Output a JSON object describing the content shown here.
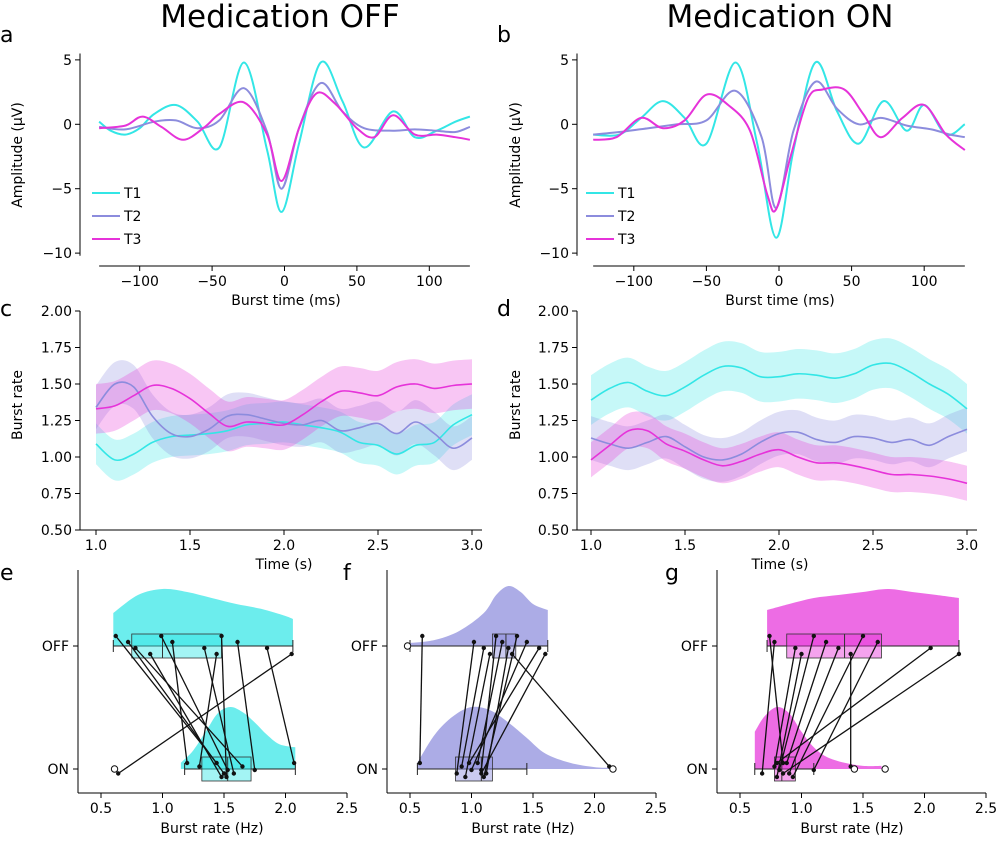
{
  "colors": {
    "T1": "#33e6e6",
    "T2": "#8c8cdd",
    "T3": "#e633d9",
    "axis": "#000000"
  },
  "columns": {
    "left_title": "Medication OFF",
    "right_title": "Medication ON"
  },
  "legend_labels": [
    "T1",
    "T2",
    "T3"
  ],
  "chart_data": [
    {
      "id": "a",
      "type": "line",
      "panel_label": "a",
      "xlabel": "Burst time (ms)",
      "ylabel": "Amplitude (μV)",
      "xlim": [
        -135,
        135
      ],
      "ylim": [
        -11,
        6
      ],
      "xticks": [
        -100,
        -50,
        0,
        50,
        100
      ],
      "xtick_labels": [
        "−100",
        "−50",
        "0",
        "50",
        "100"
      ],
      "yticks": [
        5,
        0,
        -5,
        -10
      ],
      "ytick_labels": [
        "5",
        "0",
        "−5",
        "−10"
      ],
      "series": [
        {
          "name": "T1",
          "x": [
            -128,
            -120,
            -110,
            -100,
            -90,
            -75,
            -60,
            -45,
            -28,
            -12,
            -2,
            10,
            25,
            40,
            55,
            75,
            90,
            105,
            118,
            128
          ],
          "y": [
            0.2,
            -0.5,
            -0.8,
            -0.3,
            0.8,
            1.5,
            0.2,
            -1.8,
            4.8,
            -2.0,
            -6.8,
            -1.5,
            4.8,
            1.8,
            -1.8,
            1.0,
            -1.0,
            -0.5,
            0.2,
            0.6
          ]
        },
        {
          "name": "T2",
          "x": [
            -128,
            -110,
            -90,
            -75,
            -60,
            -45,
            -28,
            -12,
            -2,
            10,
            25,
            40,
            55,
            75,
            90,
            105,
            118,
            128
          ],
          "y": [
            -0.2,
            -0.4,
            0.2,
            0.3,
            -0.3,
            0.3,
            2.8,
            -0.6,
            -5.0,
            -0.3,
            3.2,
            1.0,
            -0.3,
            -0.5,
            -0.4,
            -0.5,
            -0.6,
            -0.2
          ]
        },
        {
          "name": "T3",
          "x": [
            -128,
            -110,
            -98,
            -85,
            -70,
            -55,
            -45,
            -28,
            -12,
            -2,
            10,
            22,
            35,
            50,
            62,
            75,
            90,
            105,
            118,
            128
          ],
          "y": [
            -0.3,
            -0.1,
            0.6,
            -0.2,
            -1.2,
            -0.2,
            0.8,
            1.7,
            -0.8,
            -4.4,
            -0.3,
            2.4,
            1.6,
            -0.3,
            -1.0,
            0.7,
            -0.8,
            -0.8,
            -1.0,
            -1.2
          ]
        }
      ]
    },
    {
      "id": "b",
      "type": "line",
      "panel_label": "b",
      "xlabel": "Burst time (ms)",
      "ylabel": "Amplitude (μV)",
      "xlim": [
        -135,
        135
      ],
      "ylim": [
        -11,
        6
      ],
      "xticks": [
        -100,
        -50,
        0,
        50,
        100
      ],
      "xtick_labels": [
        "−100",
        "−50",
        "0",
        "50",
        "100"
      ],
      "yticks": [
        5,
        0,
        -5,
        -10
      ],
      "ytick_labels": [
        "5",
        "0",
        "−5",
        "−10"
      ],
      "series": [
        {
          "name": "T1",
          "x": [
            -128,
            -110,
            -95,
            -80,
            -65,
            -50,
            -30,
            -15,
            -2,
            10,
            25,
            40,
            55,
            72,
            88,
            100,
            115,
            128
          ],
          "y": [
            -0.8,
            -0.8,
            0.5,
            1.8,
            0.5,
            -1.5,
            4.8,
            -1.5,
            -8.8,
            -2.0,
            4.8,
            1.0,
            -1.5,
            1.8,
            -0.5,
            1.5,
            -0.8,
            0.0
          ]
        },
        {
          "name": "T2",
          "x": [
            -128,
            -110,
            -90,
            -70,
            -50,
            -30,
            -12,
            -2,
            10,
            25,
            40,
            55,
            70,
            88,
            105,
            118,
            128
          ],
          "y": [
            -0.8,
            -0.6,
            -0.3,
            0.0,
            0.3,
            2.6,
            -1.0,
            -6.5,
            -0.5,
            3.3,
            1.2,
            0.0,
            0.5,
            -0.1,
            -0.4,
            -0.8,
            -1.0
          ]
        },
        {
          "name": "T3",
          "x": [
            -128,
            -112,
            -95,
            -80,
            -65,
            -50,
            -35,
            -20,
            -8,
            -2,
            8,
            20,
            30,
            45,
            58,
            70,
            85,
            100,
            115,
            128
          ],
          "y": [
            -1.2,
            -1.0,
            0.5,
            -0.3,
            0.3,
            2.3,
            1.5,
            -0.5,
            -5.5,
            -6.6,
            -2.5,
            2.0,
            2.7,
            2.7,
            0.8,
            -1.0,
            0.5,
            1.5,
            -0.8,
            -2.0
          ]
        }
      ]
    },
    {
      "id": "c",
      "type": "area",
      "panel_label": "c",
      "xlabel": "Time (s)",
      "ylabel": "Burst rate",
      "xlim": [
        0.93,
        3.07
      ],
      "ylim": [
        0.5,
        2.0
      ],
      "xticks": [
        1.0,
        1.5,
        2.0,
        2.5,
        3.0
      ],
      "xtick_labels": [
        "1.0",
        "1.5",
        "2.0",
        "2.5",
        "3.0"
      ],
      "yticks": [
        0.5,
        0.75,
        1.0,
        1.25,
        1.5,
        1.75,
        2.0
      ],
      "ytick_labels": [
        "0.50",
        "0.75",
        "1.00",
        "1.25",
        "1.50",
        "1.75",
        "2.00"
      ],
      "x": [
        1.0,
        1.1,
        1.2,
        1.3,
        1.4,
        1.5,
        1.6,
        1.7,
        1.8,
        1.9,
        2.0,
        2.1,
        2.2,
        2.3,
        2.4,
        2.5,
        2.6,
        2.7,
        2.8,
        2.9,
        3.0
      ],
      "series": [
        {
          "name": "T1",
          "values": [
            1.09,
            0.98,
            1.02,
            1.1,
            1.14,
            1.15,
            1.16,
            1.18,
            1.22,
            1.23,
            1.24,
            1.22,
            1.2,
            1.17,
            1.1,
            1.08,
            1.02,
            1.08,
            1.1,
            1.22,
            1.29
          ],
          "band": 0.14
        },
        {
          "name": "T2",
          "values": [
            1.34,
            1.5,
            1.48,
            1.28,
            1.16,
            1.14,
            1.19,
            1.28,
            1.29,
            1.26,
            1.23,
            1.22,
            1.25,
            1.18,
            1.2,
            1.23,
            1.16,
            1.24,
            1.16,
            1.06,
            1.13
          ],
          "band": 0.15
        },
        {
          "name": "T3",
          "values": [
            1.33,
            1.35,
            1.42,
            1.49,
            1.47,
            1.4,
            1.3,
            1.21,
            1.24,
            1.23,
            1.22,
            1.29,
            1.38,
            1.45,
            1.44,
            1.42,
            1.48,
            1.5,
            1.47,
            1.49,
            1.5
          ],
          "band": 0.17
        }
      ]
    },
    {
      "id": "d",
      "type": "area",
      "panel_label": "d",
      "xlabel": "Time (s)",
      "ylabel": "Burst rate",
      "xlim": [
        0.93,
        3.07
      ],
      "ylim": [
        0.5,
        2.0
      ],
      "xticks": [
        1.0,
        1.5,
        2.0,
        2.5,
        3.0
      ],
      "xtick_labels": [
        "1.0",
        "1.5",
        "2.0",
        "2.5",
        "3.0"
      ],
      "yticks": [
        0.5,
        0.75,
        1.0,
        1.25,
        1.5,
        1.75,
        2.0
      ],
      "ytick_labels": [
        "0.50",
        "0.75",
        "1.00",
        "1.25",
        "1.50",
        "1.75",
        "2.00"
      ],
      "x": [
        1.0,
        1.1,
        1.2,
        1.3,
        1.4,
        1.5,
        1.6,
        1.7,
        1.8,
        1.9,
        2.0,
        2.1,
        2.2,
        2.3,
        2.4,
        2.5,
        2.6,
        2.7,
        2.8,
        2.9,
        3.0
      ],
      "series": [
        {
          "name": "T1",
          "values": [
            1.39,
            1.47,
            1.51,
            1.45,
            1.42,
            1.48,
            1.56,
            1.62,
            1.61,
            1.55,
            1.55,
            1.57,
            1.56,
            1.54,
            1.57,
            1.63,
            1.64,
            1.58,
            1.5,
            1.43,
            1.33
          ],
          "band": 0.17
        },
        {
          "name": "T2",
          "values": [
            1.13,
            1.09,
            1.06,
            1.1,
            1.14,
            1.07,
            1.0,
            0.98,
            1.02,
            1.1,
            1.16,
            1.17,
            1.12,
            1.1,
            1.14,
            1.13,
            1.1,
            1.12,
            1.08,
            1.14,
            1.19
          ],
          "band": 0.15
        },
        {
          "name": "T3",
          "values": [
            0.98,
            1.08,
            1.18,
            1.18,
            1.09,
            1.04,
            0.98,
            0.94,
            0.97,
            1.02,
            1.05,
            1.0,
            0.96,
            0.96,
            0.94,
            0.91,
            0.88,
            0.88,
            0.87,
            0.85,
            0.82
          ],
          "band": 0.12
        }
      ]
    },
    {
      "id": "e",
      "type": "scatter",
      "panel_label": "e",
      "color_series": "T1",
      "xlabel": "Burst rate (Hz)",
      "categories": [
        "OFF",
        "ON"
      ],
      "xlim": [
        0.4,
        2.5
      ],
      "xticks": [
        0.5,
        1.0,
        1.5,
        2.0,
        2.5
      ],
      "xtick_labels": [
        "0.5",
        "1.0",
        "1.5",
        "2.0",
        "2.5"
      ],
      "off_values": [
        0.62,
        0.72,
        0.78,
        0.9,
        0.99,
        1.08,
        1.34,
        1.44,
        1.48,
        1.61,
        1.85,
        2.05
      ],
      "on_values": [
        1.44,
        1.5,
        1.65,
        1.48,
        1.53,
        1.2,
        1.58,
        1.3,
        1.52,
        1.75,
        2.07,
        0.64
      ],
      "outliers_on": [
        0.61
      ],
      "box_off": {
        "q1": 0.75,
        "median": 1.0,
        "q3": 1.48,
        "whisker_low": 0.6,
        "whisker_high": 2.06
      },
      "box_on": {
        "q1": 1.32,
        "median": 1.53,
        "q3": 1.72,
        "whisker_low": 1.18,
        "whisker_high": 2.08
      },
      "density_off": {
        "x": [
          0.6,
          0.8,
          1.0,
          1.2,
          1.4,
          1.6,
          1.8,
          2.0,
          2.06
        ],
        "y": [
          0.55,
          0.85,
          0.95,
          0.9,
          0.8,
          0.7,
          0.62,
          0.5,
          0.45
        ]
      },
      "density_on": {
        "x": [
          1.15,
          1.25,
          1.35,
          1.45,
          1.55,
          1.65,
          1.75,
          1.85,
          1.95,
          2.08
        ],
        "y": [
          0.1,
          0.3,
          0.6,
          0.9,
          1.0,
          0.92,
          0.75,
          0.55,
          0.4,
          0.35
        ]
      }
    },
    {
      "id": "f",
      "type": "scatter",
      "panel_label": "f",
      "color_series": "T2",
      "xlabel": "Burst rate (Hz)",
      "categories": [
        "OFF",
        "ON"
      ],
      "xlim": [
        0.4,
        2.5
      ],
      "xticks": [
        0.5,
        1.0,
        1.5,
        2.0,
        2.5
      ],
      "xtick_labels": [
        "0.5",
        "1.0",
        "1.5",
        "2.0",
        "2.5"
      ],
      "off_values": [
        0.6,
        1.02,
        1.1,
        1.15,
        1.2,
        1.25,
        1.3,
        1.33,
        1.37,
        1.45,
        1.55,
        1.6
      ],
      "on_values": [
        0.58,
        0.88,
        0.92,
        0.95,
        1.08,
        1.05,
        1.12,
        2.12,
        1.1,
        1.0,
        0.98,
        1.08
      ],
      "outliers_off": [
        0.48
      ],
      "outliers_on": [
        2.15
      ],
      "box_off": {
        "q1": 1.17,
        "median": 1.28,
        "q3": 1.36,
        "whisker_low": 0.5,
        "whisker_high": 1.62
      },
      "box_on": {
        "q1": 0.87,
        "median": 1.08,
        "q3": 1.17,
        "whisker_low": 0.56,
        "whisker_high": 1.45
      },
      "density_off": {
        "x": [
          0.5,
          0.7,
          0.9,
          1.1,
          1.2,
          1.3,
          1.4,
          1.5,
          1.62
        ],
        "y": [
          0.05,
          0.1,
          0.25,
          0.55,
          0.85,
          1.0,
          0.9,
          0.7,
          0.6
        ]
      },
      "density_on": {
        "x": [
          0.56,
          0.7,
          0.85,
          1.0,
          1.15,
          1.3,
          1.45,
          1.6,
          1.8,
          2.0,
          2.14
        ],
        "y": [
          0.1,
          0.55,
          0.85,
          1.0,
          0.95,
          0.75,
          0.5,
          0.25,
          0.1,
          0.03,
          0.02
        ]
      }
    },
    {
      "id": "g",
      "type": "scatter",
      "panel_label": "g",
      "color_series": "T3",
      "xlabel": "Burst rate (Hz)",
      "categories": [
        "OFF",
        "ON"
      ],
      "xlim": [
        0.4,
        2.5
      ],
      "xticks": [
        0.5,
        1.0,
        1.5,
        2.0,
        2.5
      ],
      "xtick_labels": [
        "0.5",
        "1.0",
        "1.5",
        "2.0",
        "2.5"
      ],
      "off_values": [
        0.74,
        0.78,
        0.95,
        1.0,
        1.1,
        1.2,
        1.3,
        1.4,
        1.5,
        1.62,
        2.05,
        2.28
      ],
      "on_values": [
        0.85,
        0.68,
        0.78,
        0.8,
        0.82,
        0.88,
        0.9,
        1.4,
        0.93,
        1.1,
        0.8,
        0.85
      ],
      "outliers_on": [
        1.43,
        1.68
      ],
      "box_off": {
        "q1": 0.88,
        "median": 1.35,
        "q3": 1.65,
        "whisker_low": 0.72,
        "whisker_high": 2.28
      },
      "box_on": {
        "q1": 0.78,
        "median": 0.84,
        "q3": 0.95,
        "whisker_low": 0.62,
        "whisker_high": 1.1
      },
      "density_off": {
        "x": [
          0.72,
          0.9,
          1.1,
          1.3,
          1.5,
          1.7,
          1.9,
          2.1,
          2.28
        ],
        "y": [
          0.6,
          0.7,
          0.8,
          0.85,
          0.9,
          0.95,
          0.9,
          0.85,
          0.8
        ]
      },
      "density_on": {
        "x": [
          0.62,
          0.7,
          0.8,
          0.9,
          1.0,
          1.1,
          1.2,
          1.35,
          1.5,
          1.65
        ],
        "y": [
          0.6,
          0.85,
          1.0,
          0.9,
          0.6,
          0.35,
          0.2,
          0.1,
          0.05,
          0.05
        ]
      }
    }
  ]
}
